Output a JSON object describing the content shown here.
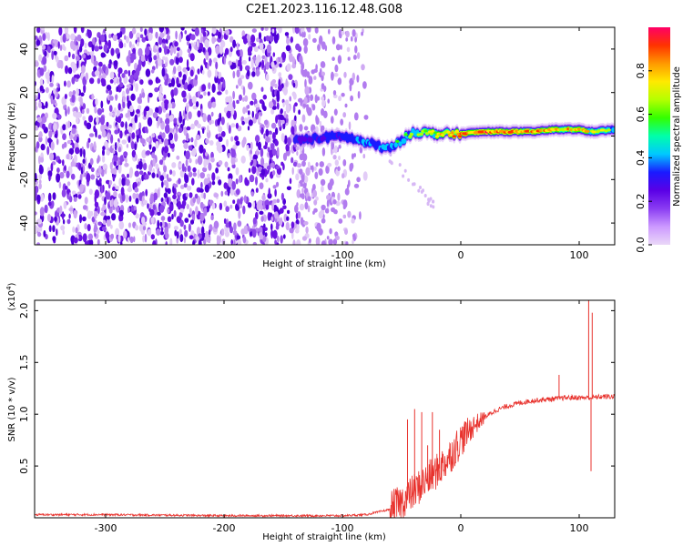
{
  "title": "C2E1.2023.116.12.48.G08",
  "chart_data": [
    {
      "type": "heatmap",
      "xlabel": "Height of straight line (km)",
      "ylabel": "Frequency (Hz)",
      "xlim": [
        -360,
        130
      ],
      "ylim": [
        -50,
        50
      ],
      "xticks": [
        -300,
        -200,
        -100,
        0,
        100
      ],
      "yticks": [
        -40,
        -20,
        0,
        20,
        40
      ],
      "noise_region": [
        -360,
        -80
      ],
      "tone_band": {
        "x": [
          -140,
          -120,
          -100,
          -80,
          -60,
          -40,
          -20,
          0,
          20,
          40,
          60,
          80,
          100,
          110,
          130
        ],
        "freq": [
          -2,
          -1,
          0,
          -3,
          -6,
          2,
          1,
          1,
          2,
          2,
          2,
          3,
          3,
          2,
          3
        ],
        "amplitude": [
          0.35,
          0.4,
          0.45,
          0.5,
          0.55,
          0.6,
          0.75,
          0.85,
          0.9,
          0.9,
          0.85,
          0.85,
          0.8,
          0.7,
          0.6
        ]
      },
      "colorbar": {
        "label": "Normalized spectral amplitude",
        "range": [
          0.0,
          1.0
        ],
        "ticks": [
          "0.0",
          "0.2",
          "0.4",
          "0.6",
          "0.8"
        ],
        "tick_values": [
          0.0,
          0.2,
          0.4,
          0.6,
          0.8
        ],
        "colors": [
          "#ead8f8",
          "#cc99ff",
          "#8a3cf2",
          "#5a00e6",
          "#1a1aff",
          "#00c8ff",
          "#00ffaa",
          "#33ff00",
          "#b4ff00",
          "#ffea00",
          "#ff9900",
          "#ff3300",
          "#ff0066"
        ]
      }
    },
    {
      "type": "line",
      "xlabel": "Height of straight line (km)",
      "ylabel": "SNR (10 * v/v)",
      "multiplier": "(x10",
      "multiplier_exp": "4",
      "multiplier_close": ")",
      "xlim": [
        -360,
        130
      ],
      "ylim": [
        0,
        2.1
      ],
      "xticks": [
        -300,
        -200,
        -100,
        0,
        100
      ],
      "yticks": [
        "0.5",
        "1.0",
        "1.5",
        "2.0"
      ],
      "ytick_values": [
        0.5,
        1.0,
        1.5,
        2.0
      ],
      "color": "#e8332e",
      "series": [
        {
          "x": [
            -360,
            -300,
            -200,
            -100,
            -80,
            -60,
            -50,
            -40,
            -30,
            -20,
            -10,
            0,
            10,
            20,
            30,
            40,
            50,
            60,
            70,
            80,
            90,
            100,
            110,
            120,
            130
          ],
          "values": [
            0.03,
            0.03,
            0.02,
            0.02,
            0.03,
            0.08,
            0.15,
            0.25,
            0.35,
            0.45,
            0.58,
            0.75,
            0.88,
            0.97,
            1.04,
            1.08,
            1.11,
            1.13,
            1.14,
            1.15,
            1.16,
            1.16,
            1.16,
            1.17,
            1.17
          ]
        }
      ],
      "spikes": [
        {
          "x": -45,
          "value": 0.95
        },
        {
          "x": -39,
          "value": 1.05
        },
        {
          "x": -33,
          "value": 1.02
        },
        {
          "x": -28,
          "value": 0.7
        },
        {
          "x": -24,
          "value": 1.02
        },
        {
          "x": -18,
          "value": 0.85
        },
        {
          "x": 83,
          "value": 1.38
        },
        {
          "x": 108,
          "value": 2.1
        },
        {
          "x": 111,
          "value": 1.98
        },
        {
          "x": 110,
          "value": 0.45
        }
      ]
    }
  ]
}
